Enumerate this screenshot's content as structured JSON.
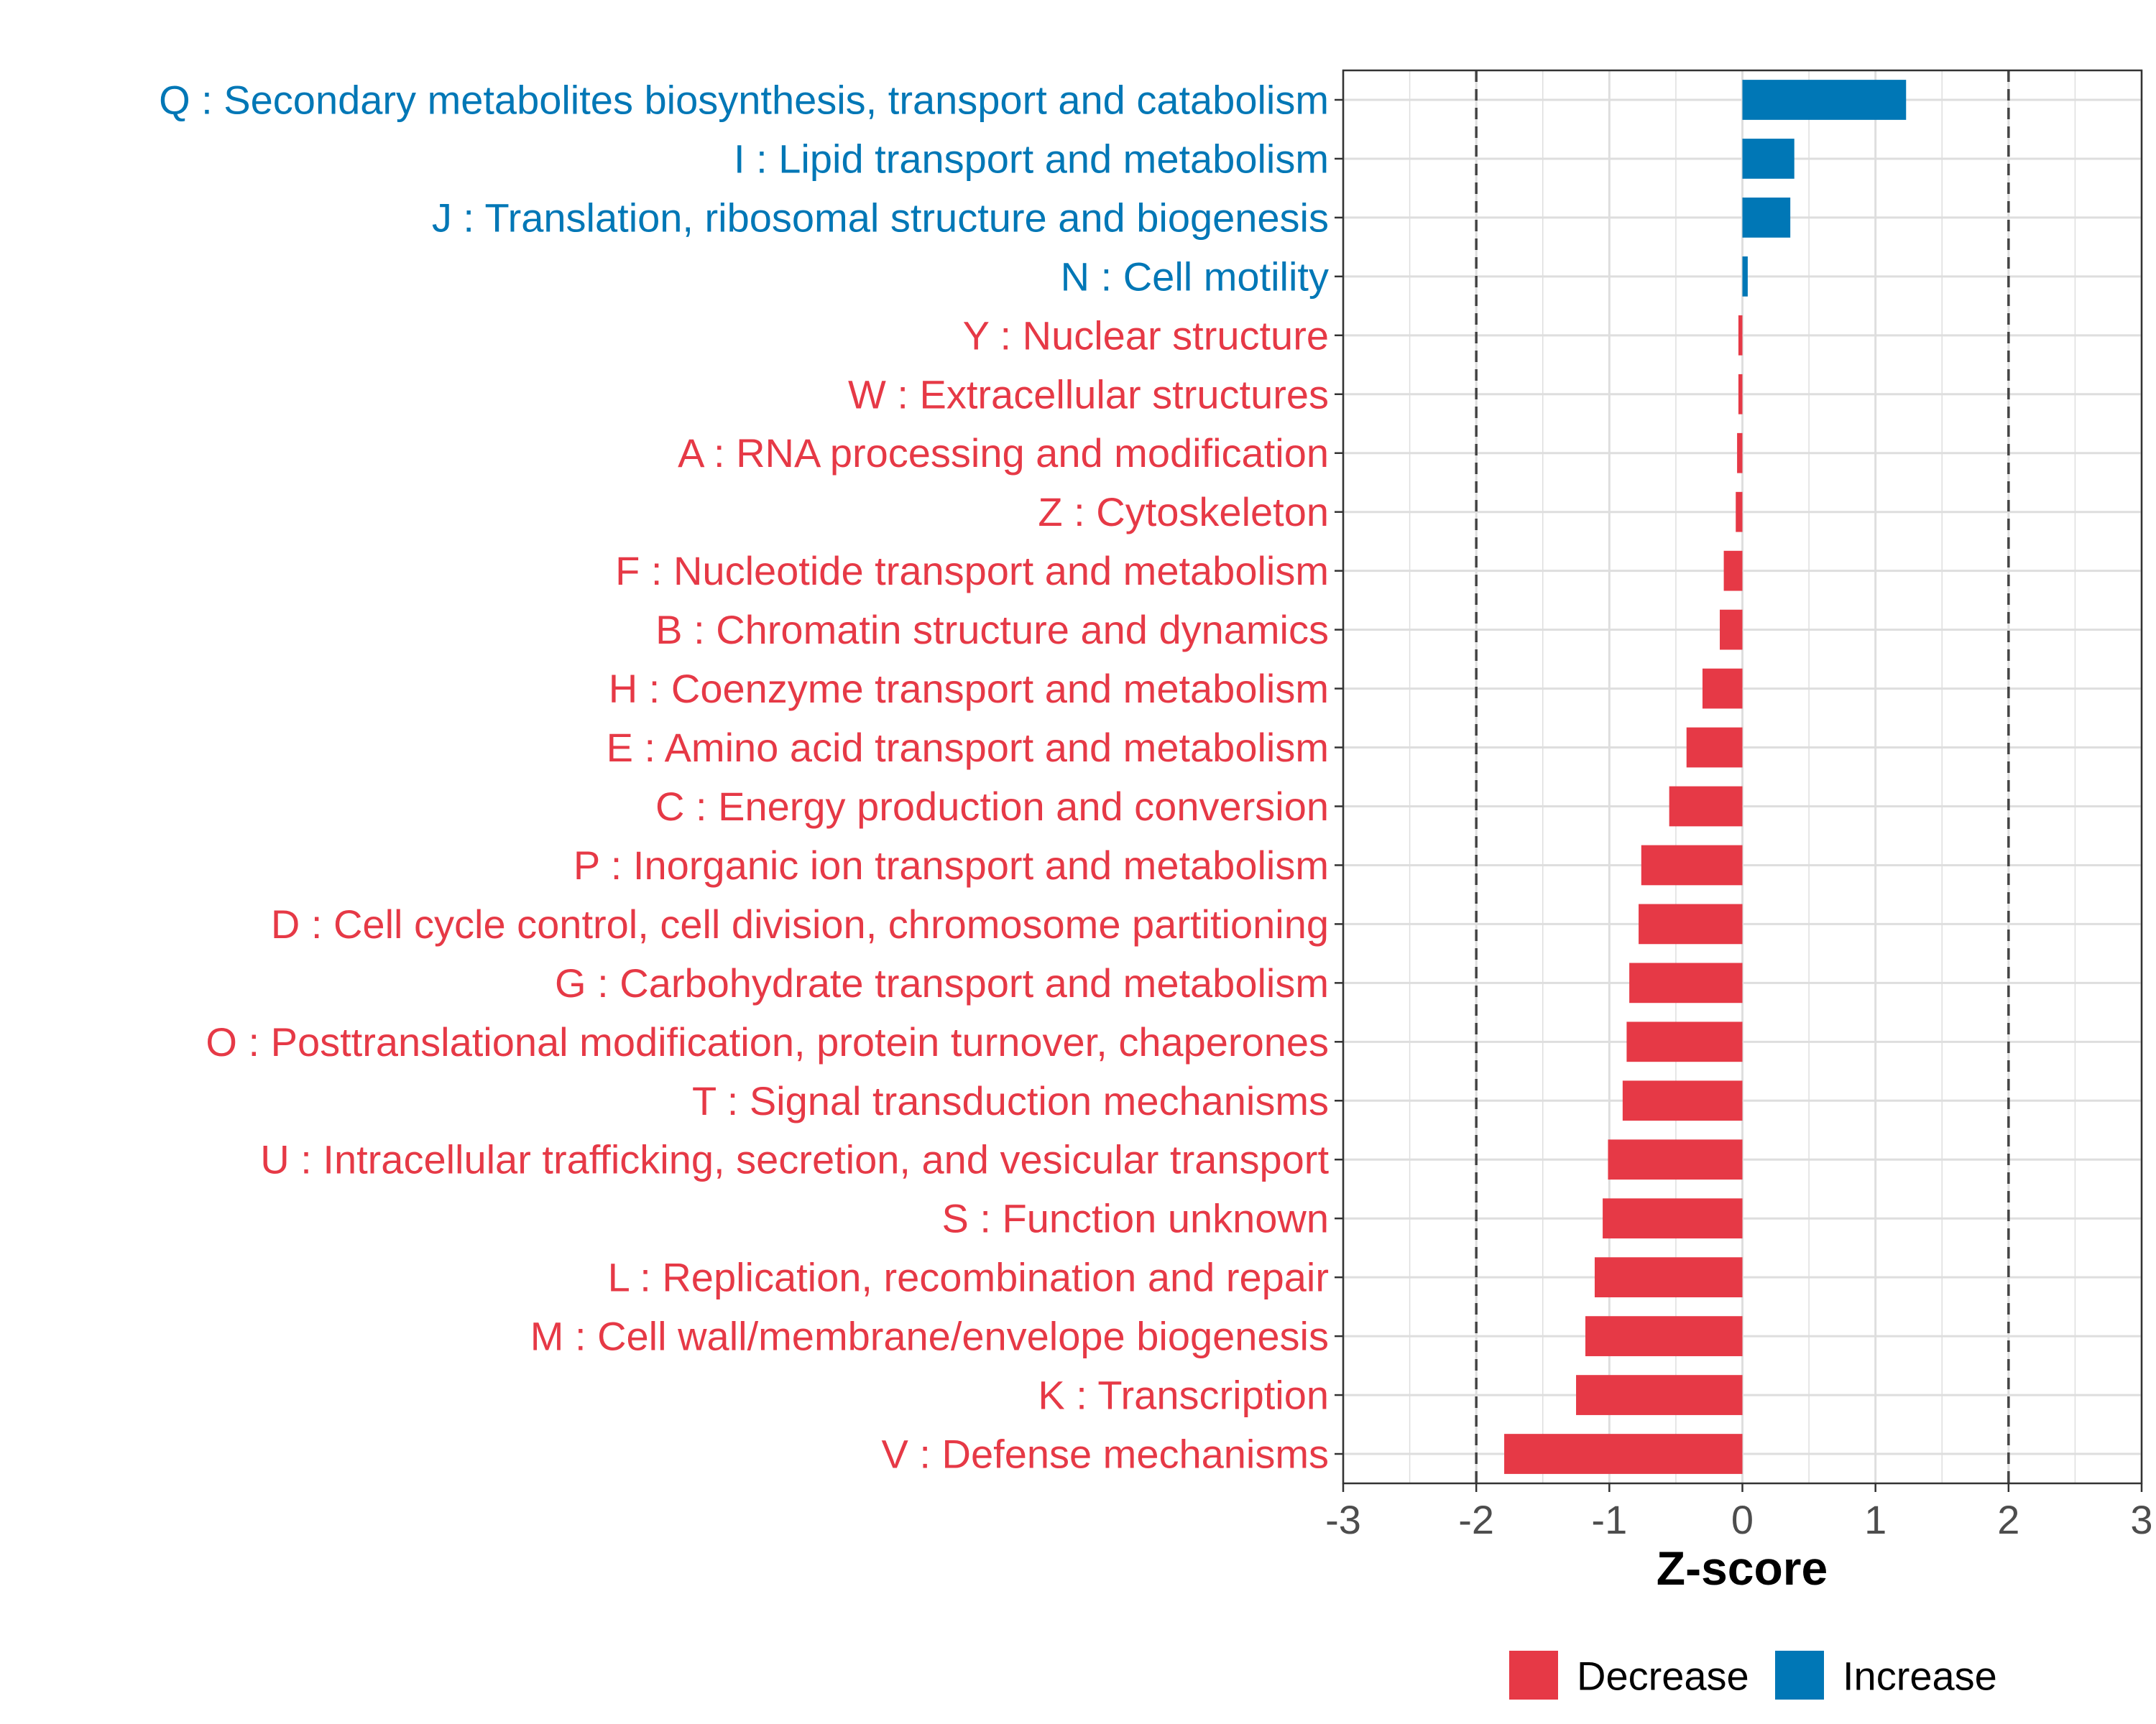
{
  "chart_data": {
    "type": "bar",
    "orientation": "horizontal",
    "title": "",
    "xlabel": "Z-score",
    "ylabel": "",
    "xlim": [
      -3,
      3
    ],
    "xticks": [
      "-3",
      "-2",
      "-1",
      "0",
      "1",
      "2",
      "3"
    ],
    "threshold_lines": [
      -2,
      2
    ],
    "grid": true,
    "colors": {
      "Decrease": "#e63946",
      "Increase": "#0077b6"
    },
    "legend": {
      "position": "bottom",
      "entries": [
        "Decrease",
        "Increase"
      ]
    },
    "categories": [
      "Q : Secondary metabolites biosynthesis, transport and catabolism",
      "I : Lipid transport and metabolism",
      "J : Translation, ribosomal structure and biogenesis",
      "N : Cell motility",
      "Y : Nuclear structure",
      "W : Extracellular structures",
      "A : RNA processing and modification",
      "Z : Cytoskeleton",
      "F : Nucleotide transport and metabolism",
      "B : Chromatin structure and dynamics",
      "H : Coenzyme transport and metabolism",
      "E : Amino acid transport and metabolism",
      "C : Energy production and conversion",
      "P : Inorganic ion transport and metabolism",
      "D : Cell cycle control, cell division, chromosome partitioning",
      "G : Carbohydrate transport and metabolism",
      "O : Posttranslational modification, protein turnover, chaperones",
      "T : Signal transduction mechanisms",
      "U : Intracellular trafficking, secretion, and vesicular transport",
      "S : Function unknown",
      "L : Replication, recombination and repair",
      "M : Cell wall/membrane/envelope biogenesis",
      "K : Transcription",
      "V : Defense mechanisms"
    ],
    "values": [
      1.23,
      0.39,
      0.36,
      0.04,
      -0.03,
      -0.03,
      -0.04,
      -0.05,
      -0.14,
      -0.17,
      -0.3,
      -0.42,
      -0.55,
      -0.76,
      -0.78,
      -0.85,
      -0.87,
      -0.9,
      -1.01,
      -1.05,
      -1.11,
      -1.18,
      -1.25,
      -1.79
    ],
    "groups": [
      "Increase",
      "Increase",
      "Increase",
      "Increase",
      "Decrease",
      "Decrease",
      "Decrease",
      "Decrease",
      "Decrease",
      "Decrease",
      "Decrease",
      "Decrease",
      "Decrease",
      "Decrease",
      "Decrease",
      "Decrease",
      "Decrease",
      "Decrease",
      "Decrease",
      "Decrease",
      "Decrease",
      "Decrease",
      "Decrease",
      "Decrease"
    ]
  }
}
